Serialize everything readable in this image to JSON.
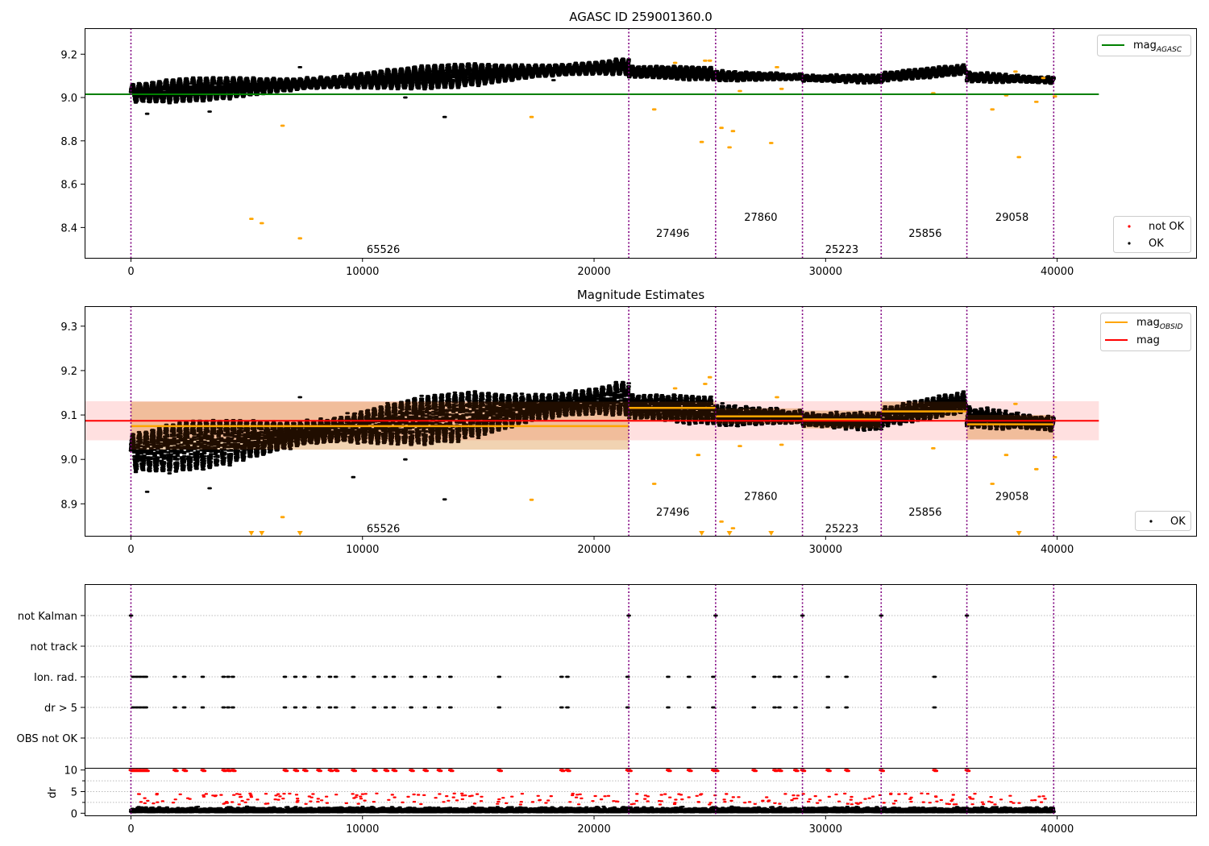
{
  "chart_data": [
    {
      "type": "scatter",
      "title": "AGASC ID 259001360.0",
      "xlim": [
        -2000,
        46000
      ],
      "ylim": [
        8.26,
        9.32
      ],
      "xticks": [
        0,
        10000,
        20000,
        30000,
        40000
      ],
      "yticks": [
        8.4,
        8.6,
        8.8,
        9.0,
        9.2
      ],
      "ytick_labels": [
        "8.4",
        "8.6",
        "8.8",
        "9.0",
        "9.2"
      ],
      "xtick_labels": [
        "0",
        "10000",
        "20000",
        "30000",
        "40000"
      ],
      "observation_boundaries": [
        0,
        21500,
        25250,
        29000,
        32400,
        36100,
        39850
      ],
      "observation_labels": [
        {
          "text": "65526",
          "x": 10900,
          "y": 8.3
        },
        {
          "text": "27496",
          "x": 23400,
          "y": 8.375
        },
        {
          "text": "27860",
          "x": 27200,
          "y": 8.45
        },
        {
          "text": "25223",
          "x": 30700,
          "y": 8.3
        },
        {
          "text": "25856",
          "x": 34300,
          "y": 8.375
        },
        {
          "text": "29058",
          "x": 38050,
          "y": 8.45
        }
      ],
      "reference_line": {
        "name": "mag$_{AGASC}$",
        "y": 9.015,
        "x_range": [
          -2000,
          41800
        ],
        "color": "#008000"
      },
      "legend_upper": [
        {
          "label_main": "mag",
          "label_sub": "AGASC",
          "color": "#008000",
          "kind": "line"
        }
      ],
      "legend_lower": [
        {
          "label": "not OK",
          "color": "#ff0000",
          "kind": "dot"
        },
        {
          "label": "OK",
          "color": "#000000",
          "kind": "dot"
        }
      ],
      "outliers_orange": [
        [
          5200,
          8.44
        ],
        [
          5650,
          8.42
        ],
        [
          7300,
          8.35
        ],
        [
          6550,
          8.87
        ],
        [
          17300,
          8.91
        ],
        [
          22600,
          8.945
        ],
        [
          24650,
          8.795
        ],
        [
          25500,
          8.86
        ],
        [
          25850,
          8.77
        ],
        [
          26000,
          8.845
        ],
        [
          26300,
          9.03
        ],
        [
          27650,
          8.79
        ],
        [
          28100,
          9.04
        ],
        [
          37200,
          8.945
        ],
        [
          37800,
          9.01
        ],
        [
          38350,
          8.725
        ],
        [
          39100,
          8.98
        ],
        [
          39900,
          9.005
        ],
        [
          34650,
          9.02
        ],
        [
          23500,
          9.16
        ],
        [
          24800,
          9.17
        ],
        [
          25000,
          9.17
        ],
        [
          27900,
          9.14
        ],
        [
          38200,
          9.12
        ],
        [
          39400,
          9.09
        ]
      ],
      "outliers_black": [
        [
          700,
          8.925
        ],
        [
          13550,
          8.91
        ],
        [
          7300,
          9.14
        ],
        [
          3400,
          8.935
        ],
        [
          11850,
          9.0
        ],
        [
          18250,
          9.08
        ]
      ],
      "segments": [
        {
          "x0": 0,
          "x1": 21500,
          "base_start": 9.02,
          "base_end": 9.145,
          "amp": 0.05,
          "period": 290
        },
        {
          "x0": 21500,
          "x1": 25250,
          "base_start": 9.12,
          "base_end": 9.11,
          "amp": 0.025,
          "period": 260
        },
        {
          "x0": 25250,
          "x1": 29000,
          "base_start": 9.1,
          "base_end": 9.095,
          "amp": 0.02,
          "period": 260
        },
        {
          "x0": 29000,
          "x1": 32400,
          "base_start": 9.09,
          "base_end": 9.085,
          "amp": 0.02,
          "period": 260
        },
        {
          "x0": 32400,
          "x1": 36100,
          "base_start": 9.095,
          "base_end": 9.13,
          "amp": 0.018,
          "period": 260
        },
        {
          "x0": 36100,
          "x1": 39850,
          "base_start": 9.095,
          "base_end": 9.08,
          "amp": 0.02,
          "period": 260
        }
      ]
    },
    {
      "type": "scatter",
      "title": "Magnitude Estimates",
      "xlim": [
        -2000,
        46000
      ],
      "ylim": [
        8.828,
        9.345
      ],
      "xticks": [
        0,
        10000,
        20000,
        30000,
        40000
      ],
      "yticks": [
        8.9,
        9.0,
        9.1,
        9.2,
        9.3
      ],
      "ytick_labels": [
        "8.9",
        "9.0",
        "9.1",
        "9.2",
        "9.3"
      ],
      "xtick_labels": [
        "0",
        "10000",
        "20000",
        "30000",
        "40000"
      ],
      "observation_boundaries": [
        0,
        21500,
        25250,
        29000,
        32400,
        36100,
        39850
      ],
      "observation_labels": [
        {
          "text": "65526",
          "x": 10900,
          "y": 8.845
        },
        {
          "text": "27496",
          "x": 23400,
          "y": 8.882
        },
        {
          "text": "27860",
          "x": 27200,
          "y": 8.918
        },
        {
          "text": "25223",
          "x": 30700,
          "y": 8.845
        },
        {
          "text": "25856",
          "x": 34300,
          "y": 8.882
        },
        {
          "text": "29058",
          "x": 38050,
          "y": 8.918
        }
      ],
      "mag_line": {
        "y": 9.087,
        "band": [
          9.043,
          9.131
        ],
        "x_range": [
          -2000,
          41800
        ],
        "color": "#ff0000"
      },
      "obsid_mags": [
        {
          "x0": 0,
          "x1": 21500,
          "mag": 9.075,
          "band": [
            9.022,
            9.13
          ]
        },
        {
          "x0": 21500,
          "x1": 25250,
          "mag": 9.116,
          "band": [
            9.085,
            9.13
          ]
        },
        {
          "x0": 25250,
          "x1": 29000,
          "mag": 9.097,
          "band": [
            9.08,
            9.115
          ]
        },
        {
          "x0": 29000,
          "x1": 32400,
          "mag": 9.09,
          "band": [
            9.07,
            9.11
          ]
        },
        {
          "x0": 32400,
          "x1": 36100,
          "mag": 9.108,
          "band": [
            9.09,
            9.13
          ]
        },
        {
          "x0": 36100,
          "x1": 39850,
          "mag": 9.079,
          "band": [
            9.045,
            9.1
          ]
        }
      ],
      "legend_upper": [
        {
          "label_main": "mag",
          "label_sub": "OBSID",
          "color": "#ffa500",
          "kind": "line"
        },
        {
          "label_main": "mag",
          "label_sub": "",
          "color": "#ff0000",
          "kind": "line"
        }
      ],
      "legend_lower": [
        {
          "label": "OK",
          "color": "#000000",
          "kind": "dot"
        }
      ],
      "bottom_markers_x": [
        5200,
        5650,
        7300,
        24650,
        25850,
        27650,
        38350
      ],
      "outliers_orange": [
        [
          6550,
          8.87
        ],
        [
          17300,
          8.909
        ],
        [
          22600,
          8.945
        ],
        [
          25500,
          8.86
        ],
        [
          26000,
          8.845
        ],
        [
          26300,
          9.03
        ],
        [
          28100,
          9.033
        ],
        [
          37200,
          8.945
        ],
        [
          37800,
          9.01
        ],
        [
          39100,
          8.978
        ],
        [
          39900,
          9.005
        ],
        [
          34650,
          9.025
        ],
        [
          23500,
          9.16
        ],
        [
          24800,
          9.17
        ],
        [
          25000,
          9.185
        ],
        [
          27900,
          9.14
        ],
        [
          38200,
          9.125
        ],
        [
          24500,
          9.01
        ]
      ],
      "outliers_black": [
        [
          700,
          8.927
        ],
        [
          13550,
          8.91
        ],
        [
          7300,
          9.14
        ],
        [
          3400,
          8.935
        ],
        [
          11850,
          9.0
        ],
        [
          9600,
          8.96
        ]
      ]
    },
    {
      "type": "scatter",
      "xlim": [
        -2000,
        46000
      ],
      "xticks": [
        0,
        10000,
        20000,
        30000,
        40000
      ],
      "xtick_labels": [
        "0",
        "10000",
        "20000",
        "30000",
        "40000"
      ],
      "flag_rows": [
        "not Kalman",
        "not track",
        "Ion. rad.",
        "dr > 5",
        "OBS not OK"
      ],
      "dr_ylabel": "dr",
      "dr_yticks": [
        0,
        5,
        10
      ],
      "dr_ytick_labels": [
        "0",
        "5",
        "10"
      ],
      "dr_ylim": [
        -0.5,
        10.5
      ],
      "observation_boundaries": [
        0,
        21500,
        25250,
        29000,
        32400,
        36100,
        39850
      ],
      "not_kalman_x": [
        0,
        21500,
        25250,
        29000,
        32400,
        36100
      ],
      "ion_rad_x": [
        100,
        250,
        400,
        550,
        650,
        1900,
        2300,
        3100,
        4000,
        4200,
        4400,
        6650,
        7100,
        7500,
        8100,
        8600,
        8850,
        9600,
        10500,
        11000,
        11350,
        12100,
        12700,
        13300,
        13800,
        15900,
        18600,
        18850,
        21450,
        23200,
        24100,
        25150,
        26900,
        27800,
        28000,
        28700,
        30100,
        30900,
        34700
      ],
      "dr_gt5_x": [
        100,
        250,
        400,
        550,
        650,
        1900,
        2300,
        3100,
        4000,
        4200,
        4400,
        6650,
        7100,
        7500,
        8100,
        8600,
        8850,
        9600,
        10500,
        11000,
        11350,
        12100,
        12700,
        13300,
        13800,
        15900,
        18600,
        18850,
        21450,
        23200,
        24100,
        25150,
        26900,
        27800,
        28000,
        28700,
        30100,
        30900,
        34700
      ]
    }
  ]
}
